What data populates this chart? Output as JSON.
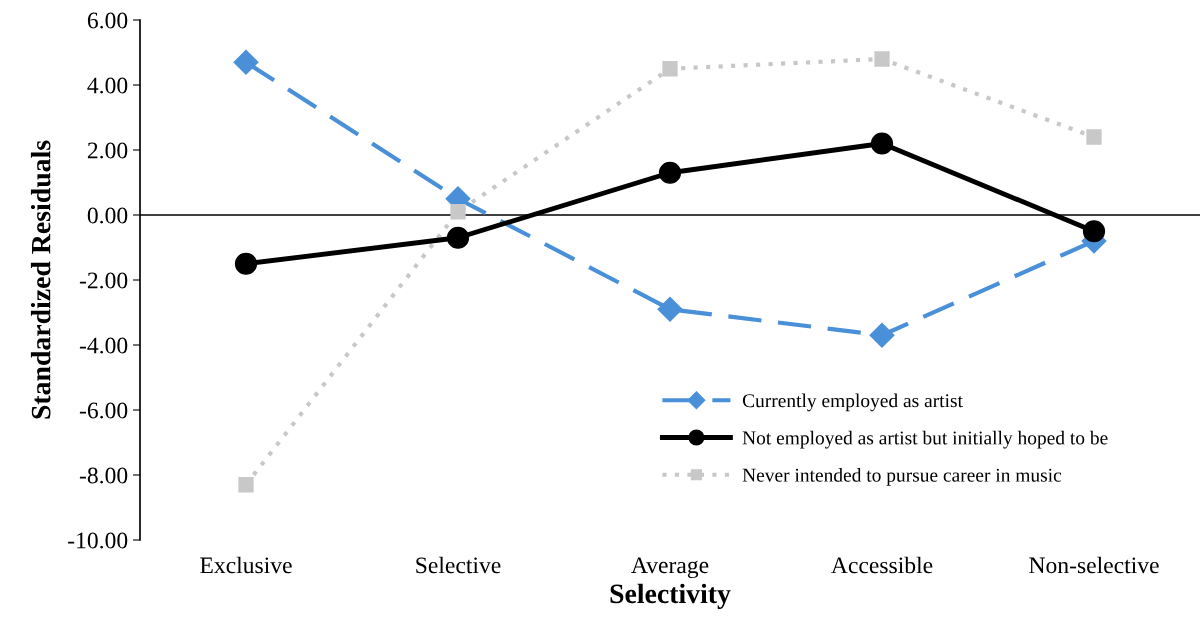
{
  "chart_data": {
    "type": "line",
    "xlabel": "Selectivity",
    "ylabel": "Standardized Residuals",
    "categories": [
      "Exclusive",
      "Selective",
      "Average",
      "Accessible",
      "Non-selective"
    ],
    "ylim": [
      -10,
      6
    ],
    "yticks": [
      {
        "value": -10,
        "label": "-10.00"
      },
      {
        "value": -8,
        "label": "-8.00"
      },
      {
        "value": -6,
        "label": "-6.00"
      },
      {
        "value": -4,
        "label": "-4.00"
      },
      {
        "value": -2,
        "label": "-2.00"
      },
      {
        "value": 0,
        "label": "0.00"
      },
      {
        "value": 2,
        "label": "2.00"
      },
      {
        "value": 4,
        "label": "4.00"
      },
      {
        "value": 6,
        "label": "6.00"
      }
    ],
    "grid": false,
    "legend": "bottom right",
    "ref_lines": [
      {
        "axis": "y",
        "value": 0,
        "color": "#000000"
      }
    ],
    "series": [
      {
        "name": "Currently employed as artist",
        "color": "#4a90d9",
        "marker": "diamond",
        "line_style": "dashed",
        "values": [
          4.7,
          0.5,
          -2.9,
          -3.7,
          -0.8
        ]
      },
      {
        "name": "Not employed as artist but initially hoped to be",
        "color": "#000000",
        "marker": "circle",
        "line_style": "solid",
        "values": [
          -1.5,
          -0.7,
          1.3,
          2.2,
          -0.5
        ]
      },
      {
        "name": "Never intended to pursue career in music",
        "color": "#c8c8c8",
        "marker": "square",
        "line_style": "dotted",
        "values": [
          -8.3,
          0.1,
          4.5,
          4.8,
          2.4
        ]
      }
    ]
  }
}
